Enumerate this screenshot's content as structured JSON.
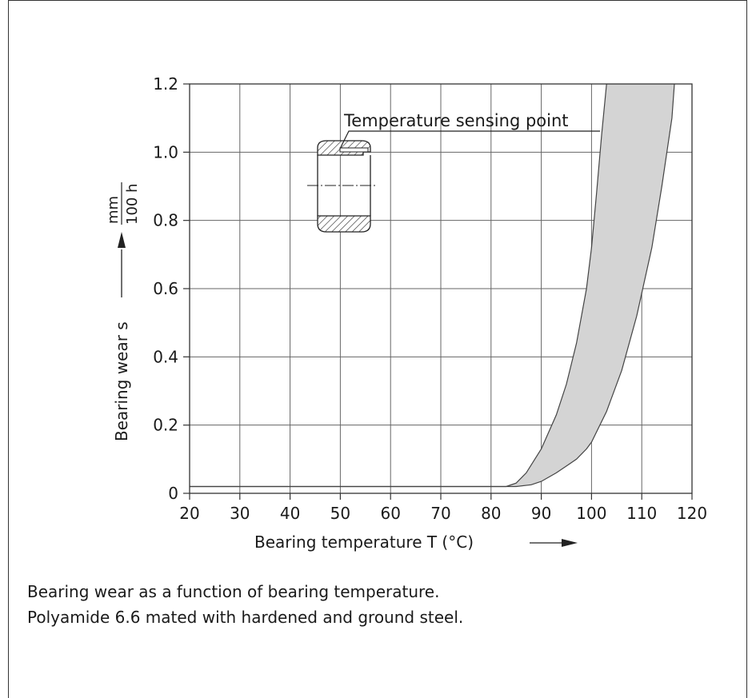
{
  "captions": [
    "Bearing wear as a function of bearing temperature.",
    "Polyamide 6.6 mated with hardened and ground steel."
  ],
  "chart_data": {
    "type": "area",
    "xlabel": "Bearing temperature T (°C)",
    "ylabel": "Bearing wear s",
    "yunit_numerator": "mm",
    "yunit_denominator": "100 h",
    "xlim": [
      20,
      120
    ],
    "ylim": [
      0,
      1.2
    ],
    "x_ticks": [
      "20",
      "30",
      "40",
      "50",
      "60",
      "70",
      "80",
      "90",
      "100",
      "110",
      "120"
    ],
    "y_ticks": [
      "0",
      "0.2",
      "0.4",
      "0.6",
      "0.8",
      "1.0",
      "1.2"
    ],
    "grid": true,
    "annotation": "Temperature sensing point",
    "series": [
      {
        "role": "band-upper",
        "x": [
          20,
          83,
          85,
          87,
          90,
          93,
          95,
          97,
          99,
          100,
          101,
          102,
          103
        ],
        "y": [
          0.02,
          0.02,
          0.03,
          0.06,
          0.13,
          0.23,
          0.32,
          0.44,
          0.6,
          0.72,
          0.88,
          1.05,
          1.2
        ]
      },
      {
        "role": "band-lower",
        "x": [
          20,
          83,
          85,
          88,
          90,
          93,
          95,
          97,
          99,
          100,
          103,
          106,
          109,
          112,
          114,
          115,
          116,
          116.5
        ],
        "y": [
          0.02,
          0.02,
          0.02,
          0.025,
          0.035,
          0.06,
          0.08,
          0.1,
          0.13,
          0.15,
          0.24,
          0.36,
          0.52,
          0.72,
          0.9,
          1.0,
          1.1,
          1.2
        ]
      }
    ],
    "colors": {
      "band_fill": "#d4d4d4",
      "grid": "#666666",
      "axis": "#333333"
    }
  }
}
